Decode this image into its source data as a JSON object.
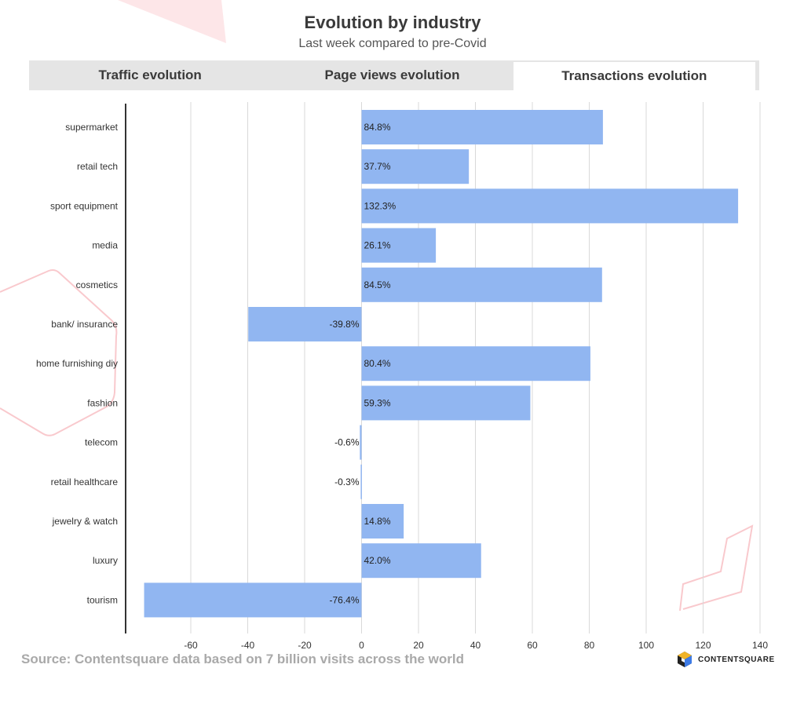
{
  "tabs": {
    "traffic": "Traffic evolution",
    "page_views": "Page views evolution",
    "transactions": "Transactions evolution",
    "active": "transactions"
  },
  "footer": {
    "source": "Source: Contentsquare data based on 7 billion visits across the world",
    "brand": "CONTENTSQUARE"
  },
  "colors": {
    "bar": "#91b6f1",
    "grid": "#d9d9d9",
    "axis": "#333333",
    "decoration": "#f9c9cd"
  },
  "chart_data": {
    "type": "bar",
    "orientation": "horizontal",
    "title": "Evolution by industry",
    "subtitle": "Last week compared to pre-Covid",
    "xlabel": "",
    "ylabel": "",
    "xlim": [
      -80,
      140
    ],
    "xticks": [
      -60,
      -40,
      -20,
      0,
      20,
      40,
      60,
      80,
      100,
      120,
      140
    ],
    "grid": true,
    "categories": [
      "supermarket",
      "retail tech",
      "sport equipment",
      "media",
      "cosmetics",
      "bank/ insurance",
      "home furnishing diy",
      "fashion",
      "telecom",
      "retail healthcare",
      "jewelry & watch",
      "luxury",
      "tourism"
    ],
    "values": [
      84.8,
      37.7,
      132.3,
      26.1,
      84.5,
      -39.8,
      80.4,
      59.3,
      -0.6,
      -0.3,
      14.8,
      42.0,
      -76.4
    ],
    "labels": [
      "84.8%",
      "37.7%",
      "132.3%",
      "26.1%",
      "84.5%",
      "-39.8%",
      "80.4%",
      "59.3%",
      "-0.6%",
      "-0.3%",
      "14.8%",
      "42.0%",
      "-76.4%"
    ]
  }
}
